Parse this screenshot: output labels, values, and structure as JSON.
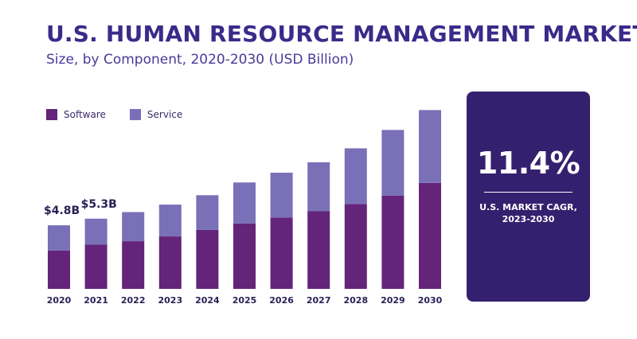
{
  "title": "U.S. HUMAN RESOURCE MANAGEMENT MARKET",
  "subtitle": "Size, by Component, 2020-2030 (USD Billion)",
  "colors": {
    "software": "#63247a",
    "service": "#7a70b8",
    "title": "#3b2a8a",
    "cagr_box": "#34206e"
  },
  "cagr": {
    "value": "11.4%",
    "label_line1": "U.S. MARKET CAGR,",
    "label_line2": "2023-2030"
  },
  "chart_data": {
    "type": "bar",
    "stacked": true,
    "categories": [
      "2020",
      "2021",
      "2022",
      "2023",
      "2024",
      "2025",
      "2026",
      "2027",
      "2028",
      "2029",
      "2030"
    ],
    "series": [
      {
        "name": "Software",
        "values": [
          2.9,
          3.35,
          3.6,
          3.96,
          4.45,
          4.93,
          5.39,
          5.86,
          6.41,
          7.05,
          8.0
        ]
      },
      {
        "name": "Service",
        "values": [
          1.9,
          1.95,
          2.2,
          2.4,
          2.62,
          3.1,
          3.38,
          3.7,
          4.2,
          4.95,
          5.5
        ]
      }
    ],
    "data_labels": [
      {
        "category": "2020",
        "text": "$4.8B"
      },
      {
        "category": "2021",
        "text": "$5.3B"
      }
    ],
    "ylim": [
      0,
      15.5
    ],
    "grid": false,
    "legend_position": "top-left"
  }
}
